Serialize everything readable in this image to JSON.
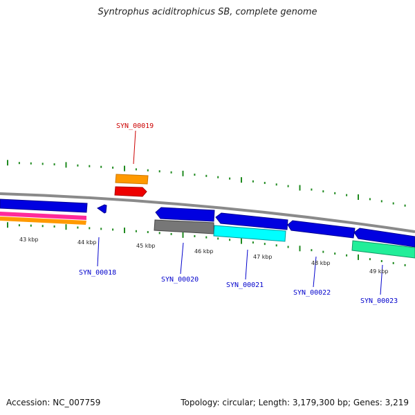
{
  "title": "Syntrophus aciditrophicus SB, complete genome",
  "footer": {
    "accession": "Accession: NC_007759",
    "summary": "Topology: circular; Length: 3,179,300 bp; Genes: 3,219"
  },
  "colors": {
    "backbone": "#8a8a8a",
    "gene_forward": "#0000e0",
    "highlight_label": "#cc0000",
    "normal_label": "#0000cc",
    "tick": "#1f8a1f",
    "orange": "#ff9900",
    "red": "#ee0000",
    "magenta": "#ff2a9a",
    "gray_gene": "#777777",
    "cyan": "#00ffff",
    "green_gene": "#22ee99"
  },
  "kbp_labels": [
    "43 kbp",
    "44 kbp",
    "45 kbp",
    "46 kbp",
    "47 kbp",
    "48 kbp",
    "49 kbp"
  ],
  "gene_labels": {
    "syn19": "SYN_00019",
    "syn18": "SYN_00018",
    "syn20": "SYN_00020",
    "syn21": "SYN_00021",
    "syn22": "SYN_00022",
    "syn23": "SYN_00023"
  }
}
